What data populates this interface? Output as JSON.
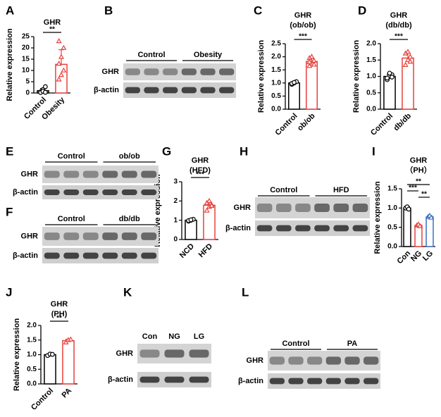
{
  "chart_data": [
    {
      "type": "bar",
      "panel": "A",
      "title": "GHR",
      "ylabel": "Relative expression",
      "categories": [
        "Control",
        "Obesity"
      ],
      "values": [
        1,
        12.7
      ],
      "errors": [
        1,
        6.5
      ],
      "points": [
        [
          0.5,
          1.5,
          2.8,
          0.2,
          0.8,
          0.3
        ],
        [
          6,
          8,
          10,
          13,
          16,
          20,
          23
        ]
      ],
      "colors": [
        "#000000",
        "#e8413c"
      ],
      "ylim": [
        0,
        25
      ],
      "yticks": [
        0,
        5,
        10,
        15,
        20,
        25
      ],
      "significance": [
        {
          "between": [
            "Control",
            "Obesity"
          ],
          "label": "**"
        }
      ]
    },
    {
      "type": "bar",
      "panel": "C",
      "title": "GHR",
      "subtitle": "(ob/ob)",
      "ylabel": "Relative expression",
      "categories": [
        "Control",
        "ob/ob"
      ],
      "values": [
        1.0,
        1.82
      ],
      "errors": [
        0.04,
        0.12
      ],
      "points": [
        [
          0.95,
          1.0,
          1.05,
          0.98,
          1.02
        ],
        [
          1.65,
          1.75,
          1.85,
          1.95,
          2.0,
          1.7,
          1.8
        ]
      ],
      "colors": [
        "#000000",
        "#e8413c"
      ],
      "ylim": [
        0,
        2.5
      ],
      "yticks": [
        {
          "value": 0,
          "label": "0.0"
        },
        0.5,
        {
          "value": 1,
          "label": "1.0"
        },
        1.5,
        {
          "value": 2,
          "label": "2.0"
        },
        2.5
      ],
      "significance": [
        {
          "between": [
            "Control",
            "ob/ob"
          ],
          "label": "***"
        }
      ]
    },
    {
      "type": "bar",
      "panel": "D",
      "title": "GHR",
      "subtitle": "(db/db)",
      "ylabel": "Relative expression",
      "categories": [
        "Control",
        "db/db"
      ],
      "values": [
        1.0,
        1.56
      ],
      "errors": [
        0.07,
        0.15
      ],
      "points": [
        [
          0.9,
          1.0,
          1.05,
          0.95,
          1.1,
          0.98
        ],
        [
          1.35,
          1.5,
          1.6,
          1.7,
          1.75,
          1.45
        ]
      ],
      "colors": [
        "#000000",
        "#e8413c"
      ],
      "ylim": [
        0,
        2
      ],
      "yticks": [
        {
          "value": 0,
          "label": "0.0"
        },
        0.5,
        {
          "value": 1,
          "label": "1.0"
        },
        1.5,
        {
          "value": 2,
          "label": "2.0"
        }
      ],
      "significance": [
        {
          "between": [
            "Control",
            "db/db"
          ],
          "label": "***"
        }
      ]
    },
    {
      "type": "bar",
      "panel": "G",
      "title": "GHR",
      "subtitle": "(HFD)",
      "ylabel": "Relative expression",
      "categories": [
        "NCD",
        "HFD"
      ],
      "values": [
        1.0,
        1.78
      ],
      "errors": [
        0.04,
        0.16
      ],
      "points": [
        [
          0.95,
          1.0,
          1.05,
          0.98,
          1.02
        ],
        [
          1.5,
          1.7,
          1.8,
          1.9,
          2.0,
          1.75
        ]
      ],
      "colors": [
        "#000000",
        "#e8413c"
      ],
      "ylim": [
        0,
        3
      ],
      "yticks": [
        0,
        1,
        2,
        3
      ],
      "significance": [
        {
          "between": [
            "NCD",
            "HFD"
          ],
          "label": "***"
        }
      ]
    },
    {
      "type": "bar",
      "panel": "I",
      "title": "GHR",
      "subtitle": "（PH）",
      "ylabel": "Relative expression",
      "categories": [
        "Con",
        "NG",
        "LG"
      ],
      "values": [
        1.0,
        0.55,
        0.77
      ],
      "errors": [
        0.03,
        0.02,
        0.03
      ],
      "points": [
        [
          1.0,
          1.03,
          0.97
        ],
        [
          0.55,
          0.57,
          0.53
        ],
        [
          0.77,
          0.8,
          0.75
        ]
      ],
      "colors": [
        "#000000",
        "#e8413c",
        "#3b6fc4"
      ],
      "ylim": [
        0,
        1.5
      ],
      "yticks": [
        {
          "value": 0,
          "label": "0.0"
        },
        0.5,
        {
          "value": 1,
          "label": "1.0"
        },
        1.5
      ],
      "significance": [
        {
          "between": [
            "Con",
            "LG"
          ],
          "label": "**"
        },
        {
          "between": [
            "Con",
            "NG"
          ],
          "label": "***"
        },
        {
          "between": [
            "NG",
            "LG"
          ],
          "label": "**"
        }
      ]
    },
    {
      "type": "bar",
      "panel": "J",
      "title": "GHR",
      "subtitle": "(PH)",
      "ylabel": "Relative expression",
      "categories": [
        "Control",
        "PA"
      ],
      "values": [
        1.0,
        1.48
      ],
      "errors": [
        0.03,
        0.05
      ],
      "points": [
        [
          0.97,
          1.02,
          1.01
        ],
        [
          1.42,
          1.5,
          1.52
        ]
      ],
      "colors": [
        "#000000",
        "#e8413c"
      ],
      "ylim": [
        0,
        2
      ],
      "yticks": [
        {
          "value": 0,
          "label": "0.0"
        },
        0.5,
        {
          "value": 1,
          "label": "1.0"
        },
        1.5,
        {
          "value": 2,
          "label": "2.0"
        }
      ],
      "significance": [
        {
          "between": [
            "Control",
            "PA"
          ],
          "label": "**"
        }
      ]
    }
  ],
  "blots": [
    {
      "panel": "B",
      "groups": [
        "Control",
        "Obesity"
      ],
      "rows": [
        "GHR",
        "β-actin"
      ]
    },
    {
      "panel": "E",
      "groups": [
        "Control",
        "ob/ob"
      ],
      "rows": [
        "GHR",
        "β-actin"
      ]
    },
    {
      "panel": "F",
      "groups": [
        "Control",
        "db/db"
      ],
      "rows": [
        "GHR",
        "β-actin"
      ]
    },
    {
      "panel": "H",
      "groups": [
        "Control",
        "HFD"
      ],
      "rows": [
        "GHR",
        "β-actin"
      ]
    },
    {
      "panel": "K",
      "lanes": [
        "Con",
        "NG",
        "LG"
      ],
      "rows": [
        "GHR",
        "β-actin"
      ]
    },
    {
      "panel": "L",
      "groups": [
        "Control",
        "PA"
      ],
      "rows": [
        "GHR",
        "β-actin"
      ]
    }
  ]
}
